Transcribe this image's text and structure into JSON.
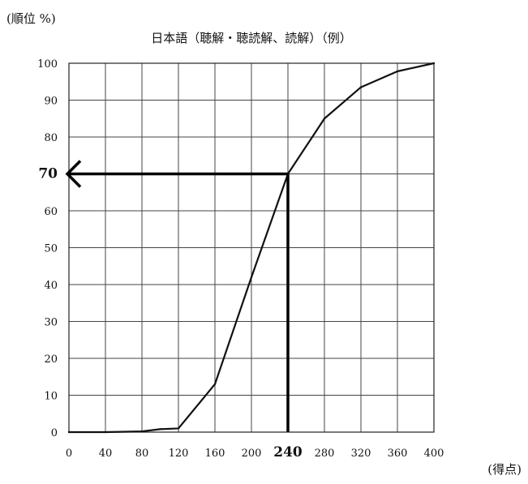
{
  "chart_data": {
    "type": "line",
    "title": "日本語（聴解・聴読解、読解）（例）",
    "ylabel": "(順位 %)",
    "xlabel": "(得点)",
    "xlim": [
      0,
      400
    ],
    "ylim": [
      0,
      100
    ],
    "grid": true,
    "x_ticks": [
      "0",
      "40",
      "80",
      "120",
      "160",
      "200",
      "240",
      "280",
      "320",
      "360",
      "400"
    ],
    "y_ticks": [
      "0",
      "10",
      "20",
      "30",
      "40",
      "50",
      "60",
      "70",
      "80",
      "90",
      "100"
    ],
    "series": [
      {
        "x": [
          0,
          40,
          80,
          100,
          120,
          160,
          200,
          240,
          280,
          320,
          360,
          400
        ],
        "values": [
          0,
          0,
          0.2,
          0.8,
          1,
          13,
          42,
          70,
          85,
          93.5,
          97.8,
          100
        ]
      }
    ],
    "annotation": {
      "x": 240,
      "y": 70,
      "x_label": "240",
      "y_label": "70"
    }
  }
}
